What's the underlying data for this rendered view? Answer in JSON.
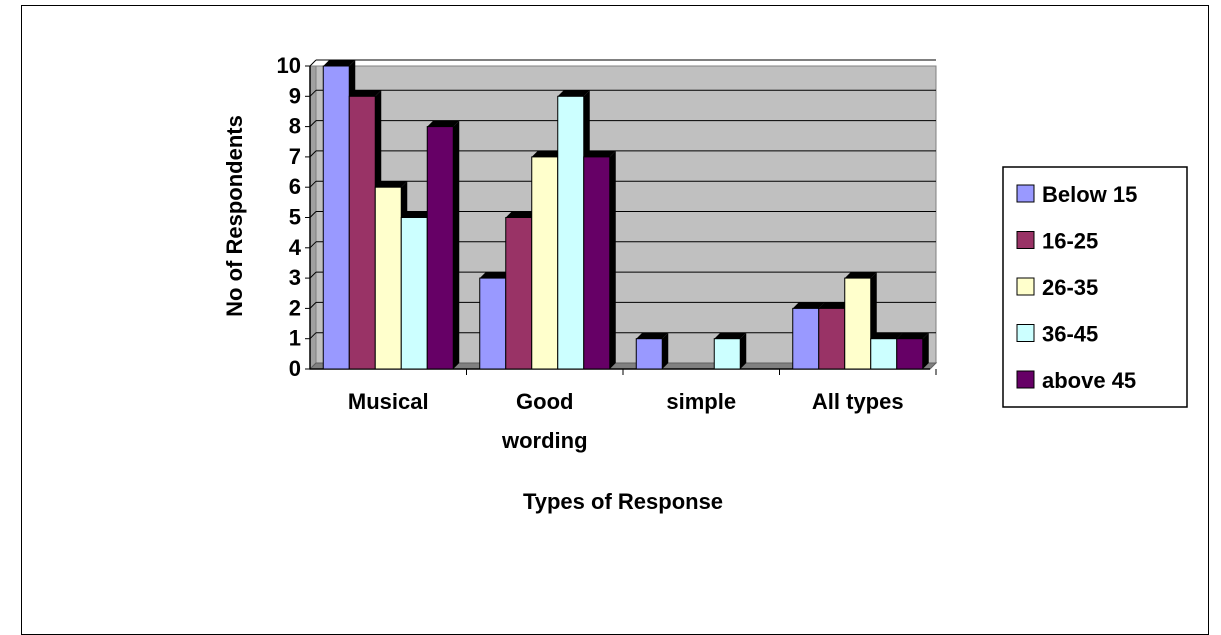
{
  "chart_data": {
    "type": "bar",
    "title": "",
    "xlabel": "Types of Response",
    "ylabel": "No of Respondents",
    "categories": [
      [
        "Musical"
      ],
      [
        "Good",
        "wording"
      ],
      [
        "simple"
      ],
      [
        "All types"
      ]
    ],
    "series": [
      {
        "name": "Below 15",
        "color": "#9999FF",
        "values": [
          10,
          3,
          1,
          2
        ]
      },
      {
        "name": "16-25",
        "color": "#993366",
        "values": [
          9,
          5,
          0,
          2
        ]
      },
      {
        "name": "26-35",
        "color": "#FFFFCC",
        "values": [
          6,
          7,
          0,
          3
        ]
      },
      {
        "name": "36-45",
        "color": "#CCFFFF",
        "values": [
          5,
          9,
          1,
          1
        ]
      },
      {
        "name": "above 45",
        "color": "#660066",
        "values": [
          8,
          7,
          0,
          1
        ]
      }
    ],
    "ylim": [
      0,
      10
    ],
    "yticks": [
      0,
      1,
      2,
      3,
      4,
      5,
      6,
      7,
      8,
      9,
      10
    ],
    "grid": true,
    "plot_background": "#C0C0C0",
    "legend_position": "right"
  }
}
